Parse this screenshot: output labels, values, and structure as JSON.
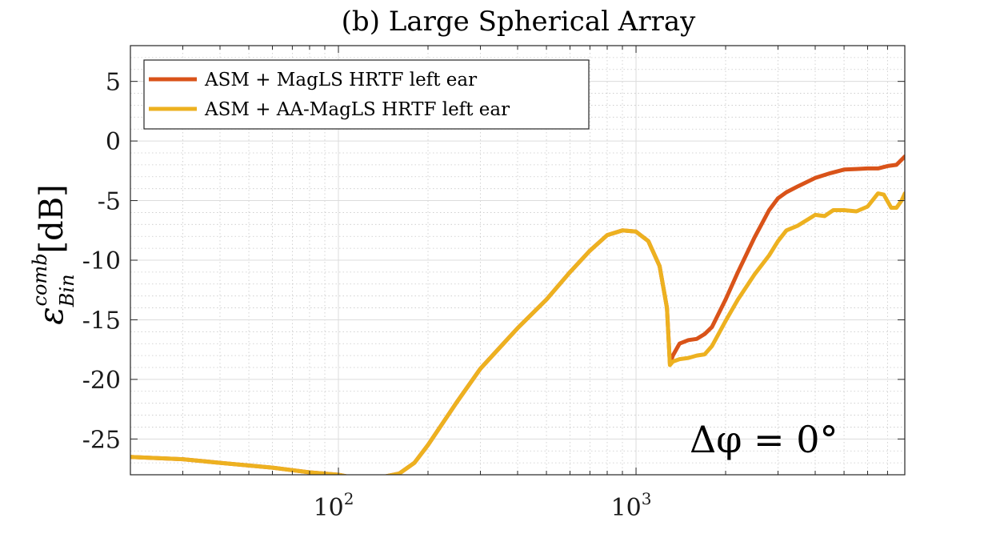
{
  "chart_data": {
    "type": "line",
    "title": "(b) Large Spherical Array",
    "ylabel": {
      "base": "ε",
      "sub": "Bin",
      "sup": "comb",
      "unit": "[dB]"
    },
    "xlabel": "",
    "xscale": "log",
    "xlim": [
      20,
      8000
    ],
    "ylim": [
      -28,
      8
    ],
    "yticks": [
      5,
      0,
      -5,
      -10,
      -15,
      -20,
      -25
    ],
    "ytick_labels": [
      "5",
      "0",
      "-5",
      "-10",
      "-15",
      "-20",
      "-25"
    ],
    "xticks": [
      {
        "value": 100,
        "base": "10",
        "exp": "2"
      },
      {
        "value": 1000,
        "base": "10",
        "exp": "3"
      }
    ],
    "grid": true,
    "legend_position": "top-left",
    "annotation": "Δφ = 0°",
    "series": [
      {
        "name": "ASM + MagLS HRTF left ear",
        "color": "#D95319",
        "x": [
          20,
          30,
          40,
          60,
          80,
          100,
          115,
          140,
          160,
          180,
          200,
          250,
          300,
          400,
          500,
          600,
          700,
          800,
          900,
          1000,
          1100,
          1200,
          1270,
          1300,
          1330,
          1400,
          1500,
          1600,
          1700,
          1800,
          2000,
          2200,
          2500,
          2800,
          3000,
          3200,
          3500,
          4000,
          4500,
          5000,
          5500,
          6000,
          6500,
          7000,
          7500,
          8000
        ],
        "values": [
          -26.5,
          -26.7,
          -27.0,
          -27.4,
          -27.8,
          -28.0,
          -28.3,
          -28.2,
          -27.9,
          -27.0,
          -25.5,
          -21.9,
          -19.1,
          -15.7,
          -13.3,
          -11.0,
          -9.2,
          -7.9,
          -7.5,
          -7.6,
          -8.4,
          -10.5,
          -14.0,
          -18.7,
          -18.0,
          -17.0,
          -16.7,
          -16.6,
          -16.2,
          -15.6,
          -13.3,
          -11.0,
          -8.1,
          -5.8,
          -4.8,
          -4.3,
          -3.8,
          -3.1,
          -2.7,
          -2.4,
          -2.35,
          -2.3,
          -2.3,
          -2.1,
          -2.0,
          -1.3
        ]
      },
      {
        "name": "ASM + AA-MagLS HRTF left ear",
        "color": "#EDB120",
        "x": [
          20,
          30,
          40,
          60,
          80,
          100,
          115,
          140,
          160,
          180,
          200,
          250,
          300,
          400,
          500,
          600,
          700,
          800,
          900,
          1000,
          1100,
          1200,
          1270,
          1300,
          1330,
          1400,
          1500,
          1600,
          1700,
          1800,
          2000,
          2200,
          2500,
          2800,
          3000,
          3200,
          3500,
          4000,
          4300,
          4600,
          5000,
          5500,
          6000,
          6500,
          6800,
          7200,
          7500,
          7800,
          8000
        ],
        "values": [
          -26.5,
          -26.7,
          -27.0,
          -27.4,
          -27.8,
          -28.0,
          -28.3,
          -28.2,
          -27.9,
          -27.0,
          -25.5,
          -21.9,
          -19.1,
          -15.7,
          -13.3,
          -11.0,
          -9.2,
          -7.9,
          -7.5,
          -7.6,
          -8.4,
          -10.5,
          -14.0,
          -18.8,
          -18.5,
          -18.3,
          -18.2,
          -18.0,
          -17.9,
          -17.2,
          -15.1,
          -13.3,
          -11.2,
          -9.6,
          -8.4,
          -7.5,
          -7.1,
          -6.2,
          -6.3,
          -5.8,
          -5.8,
          -5.9,
          -5.5,
          -4.4,
          -4.5,
          -5.6,
          -5.6,
          -5.0,
          -4.4
        ]
      }
    ]
  }
}
